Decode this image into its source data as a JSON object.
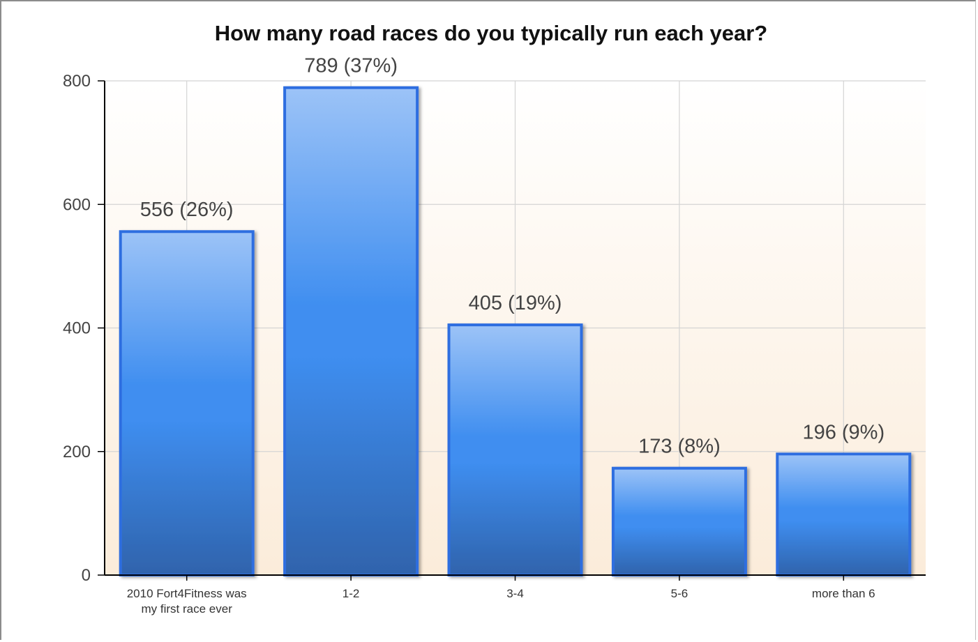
{
  "chart_data": {
    "type": "bar",
    "title": "How many road races do you typically run each year?",
    "xlabel": "",
    "ylabel": "",
    "categories": [
      [
        "2010 Fort4Fitness was",
        "my first race ever"
      ],
      [
        "1-2"
      ],
      [
        "3-4"
      ],
      [
        "5-6"
      ],
      [
        "more than 6"
      ]
    ],
    "values": [
      556,
      789,
      405,
      173,
      196
    ],
    "data_labels": [
      "556 (26%)",
      "789 (37%)",
      "405 (19%)",
      "173 (8%)",
      "196 (9%)"
    ],
    "ylim": [
      0,
      800
    ],
    "yticks": [
      0,
      200,
      400,
      600,
      800
    ],
    "grid": true,
    "legend": "none",
    "colors": {
      "bar_top": "#9cc3f7",
      "bar_mid": "#3f8ef0",
      "bar_bottom": "#2f63ac",
      "bar_border": "#2e6ee0",
      "background_top": "#ffffff",
      "background_bottom": "#fbecda",
      "grid": "#d4d4d4",
      "axis": "#000000"
    }
  }
}
